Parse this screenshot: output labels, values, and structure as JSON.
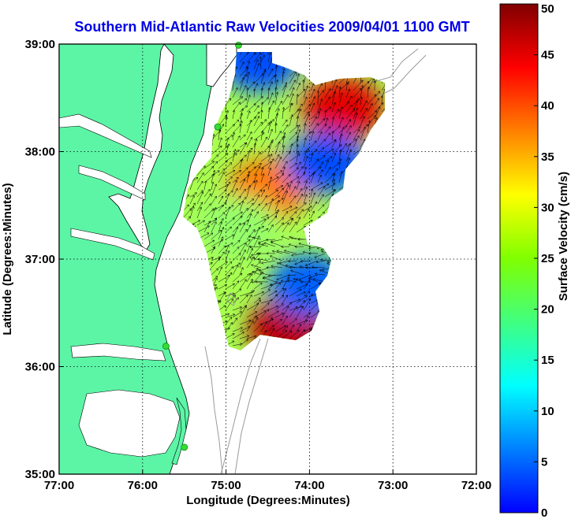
{
  "title": "Southern Mid-Atlantic Raw Velocities 2009/04/01 1100 GMT",
  "x_axis": {
    "label": "Longitude (Degrees:Minutes)",
    "ticks": [
      "77:00",
      "76:00",
      "75:00",
      "74:00",
      "73:00",
      "72:00"
    ],
    "values": [
      -77,
      -76,
      -75,
      -74,
      -73,
      -72
    ]
  },
  "y_axis": {
    "label": "Latitude (Degrees:Minutes)",
    "ticks": [
      "35:00",
      "36:00",
      "37:00",
      "38:00",
      "39:00"
    ],
    "values": [
      35,
      36,
      37,
      38,
      39
    ]
  },
  "colorbar": {
    "label": "Surface Velocity (cm/s)",
    "ticks": [
      "0",
      "5",
      "10",
      "15",
      "20",
      "25",
      "30",
      "35",
      "40",
      "45",
      "50"
    ],
    "range": [
      0,
      50
    ],
    "colormap": "jet"
  },
  "colors": {
    "title": "#0000e6",
    "land": "#5cf5a6",
    "bathymetry": "#9a9a9a",
    "station": "#33dd33",
    "arrows": "#000000",
    "grid": "#000000"
  },
  "map_extent": {
    "lon": [
      -77,
      -72
    ],
    "lat": [
      35,
      39
    ]
  },
  "grid": "dotted",
  "stations": [
    {
      "lon": -74.85,
      "lat": 38.99
    },
    {
      "lon": -75.1,
      "lat": 38.23
    },
    {
      "lon": -75.72,
      "lat": 36.19
    },
    {
      "lon": -75.5,
      "lat": 35.25
    }
  ],
  "velocity_regions": [
    {
      "name": "north-east-core",
      "lon": -73.6,
      "lat": 38.4,
      "speed": 45
    },
    {
      "name": "central-core",
      "lon": -74.5,
      "lat": 37.65,
      "speed": 38
    },
    {
      "name": "southern-core",
      "lon": -74.25,
      "lat": 36.35,
      "speed": 47
    },
    {
      "name": "northern-tip",
      "lon": -74.6,
      "lat": 38.85,
      "speed": 10
    },
    {
      "name": "mid-east-patch",
      "lon": -73.8,
      "lat": 37.9,
      "speed": 10
    },
    {
      "name": "south-east-patch",
      "lon": -74.0,
      "lat": 36.75,
      "speed": 11
    },
    {
      "name": "western-band",
      "lon": -74.85,
      "lat": 37.3,
      "speed": 26
    }
  ]
}
